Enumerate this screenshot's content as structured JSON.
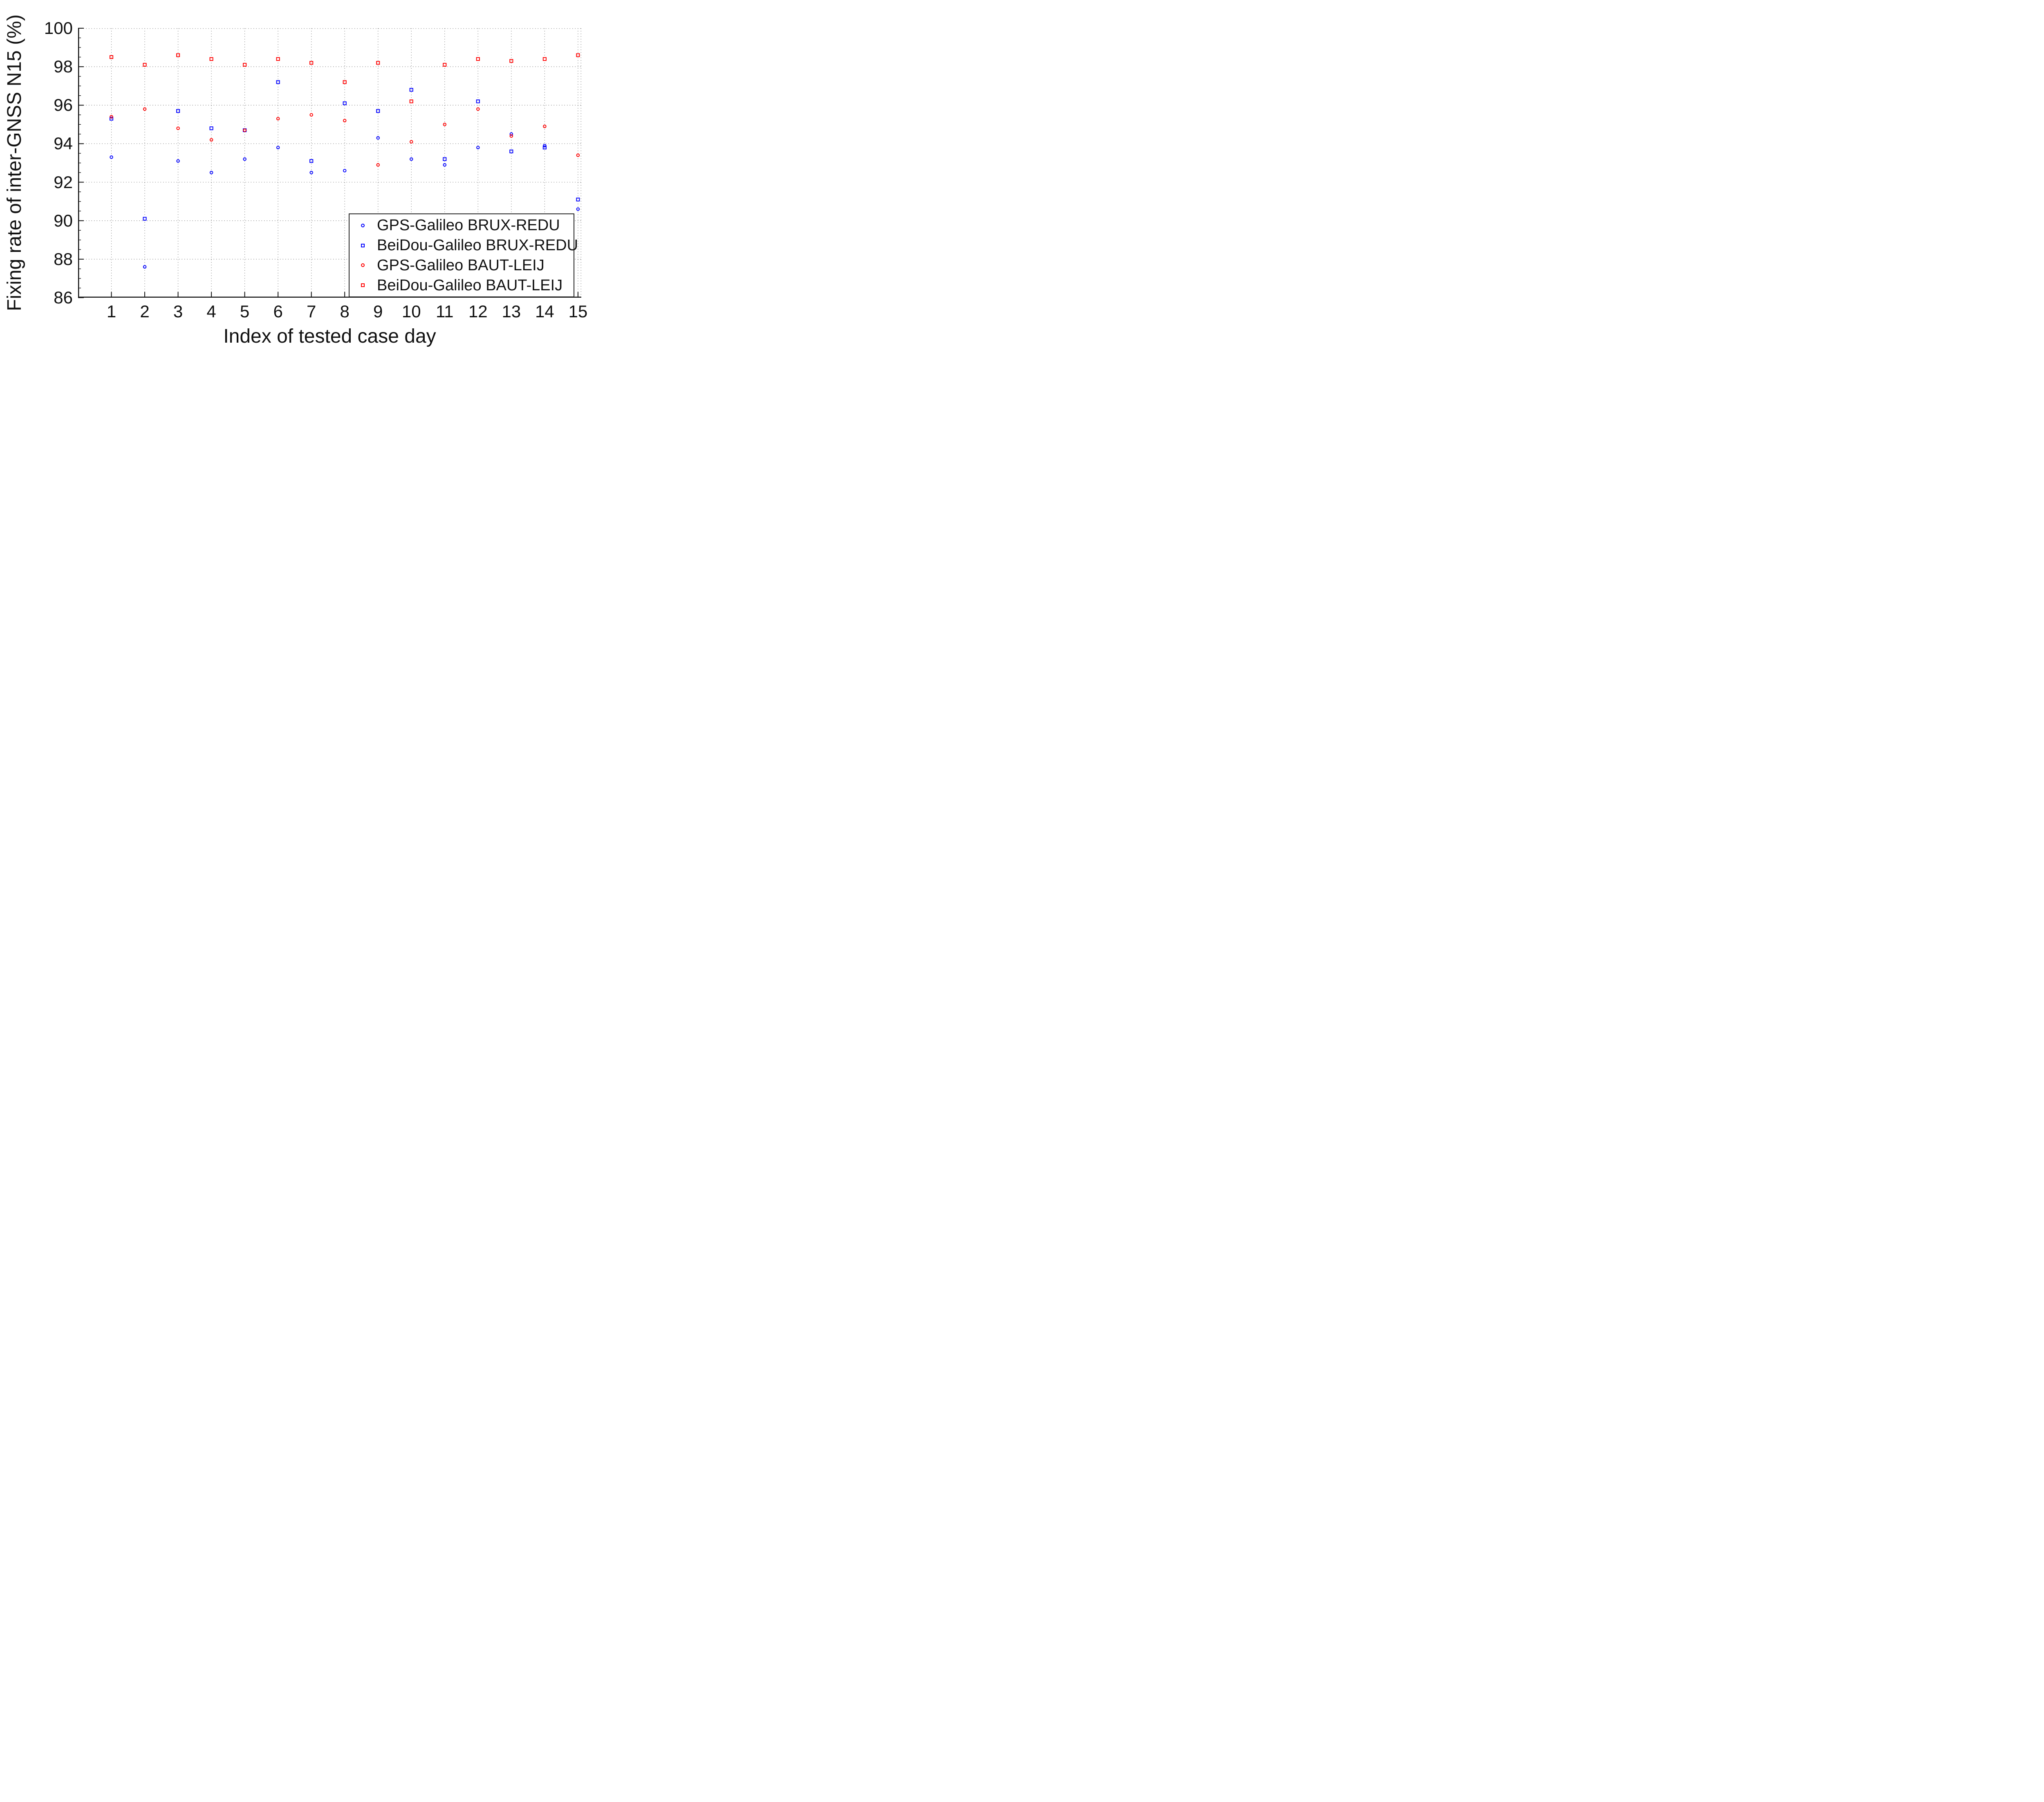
{
  "chart_data": {
    "type": "scatter",
    "title": "",
    "xlabel": "Index of tested case day",
    "ylabel": "Fixing rate of inter-GNSS N15 (%)",
    "x": [
      1,
      2,
      3,
      4,
      5,
      6,
      7,
      8,
      9,
      10,
      11,
      12,
      13,
      14,
      15
    ],
    "xticks": [
      1,
      2,
      3,
      4,
      5,
      6,
      7,
      8,
      9,
      10,
      11,
      12,
      13,
      14,
      15
    ],
    "yticks": [
      86,
      88,
      90,
      92,
      94,
      96,
      98,
      100
    ],
    "xlim": [
      0,
      15.1
    ],
    "ylim": [
      86,
      100
    ],
    "grid": true,
    "grid_style": "dotted",
    "legend_position": "lower right",
    "series": [
      {
        "name": "GPS-Galileo BRUX-REDU",
        "marker": "circle",
        "color": "#0000ff",
        "values": [
          93.3,
          87.6,
          93.1,
          92.5,
          93.2,
          93.8,
          92.5,
          92.6,
          94.3,
          93.2,
          92.9,
          93.8,
          94.5,
          93.9,
          90.6
        ]
      },
      {
        "name": "BeiDou-Galileo BRUX-REDU",
        "marker": "square",
        "color": "#0000ff",
        "values": [
          95.3,
          90.1,
          95.7,
          94.8,
          94.7,
          97.2,
          93.1,
          96.1,
          95.7,
          96.8,
          93.2,
          96.2,
          93.6,
          93.8,
          91.1
        ]
      },
      {
        "name": "GPS-Galileo BAUT-LEIJ",
        "marker": "circle",
        "color": "#ff0000",
        "values": [
          95.4,
          95.8,
          94.8,
          94.2,
          94.7,
          95.3,
          95.5,
          95.2,
          92.9,
          94.1,
          95.0,
          95.8,
          94.4,
          94.9,
          93.4
        ]
      },
      {
        "name": "BeiDou-Galileo BAUT-LEIJ",
        "marker": "square",
        "color": "#ff0000",
        "values": [
          98.5,
          98.1,
          98.6,
          98.4,
          98.1,
          98.4,
          98.2,
          97.2,
          98.2,
          96.2,
          98.1,
          98.4,
          98.3,
          98.4,
          98.6
        ]
      }
    ]
  }
}
